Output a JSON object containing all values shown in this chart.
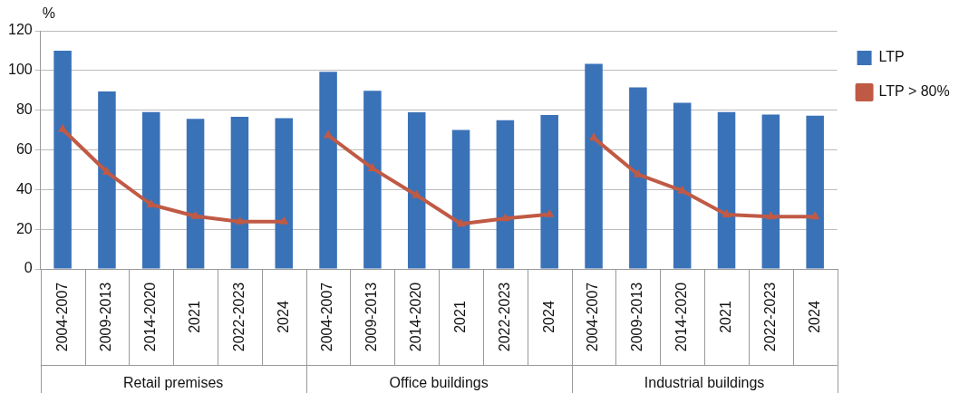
{
  "chart_data": {
    "type": "bar",
    "categories": [
      "2004-2007",
      "2009-2013",
      "2014-2020",
      "2021",
      "2022-2023",
      "2024",
      "2004-2007",
      "2009-2013",
      "2014-2020",
      "2021",
      "2022-2023",
      "2024",
      "2004-2007",
      "2009-2013",
      "2014-2020",
      "2021",
      "2022-2023",
      "2024"
    ],
    "series": [
      {
        "name": "LTP",
        "color": "#3a72b8",
        "values": [
          110,
          89.4,
          79,
          75.6,
          76.7,
          76,
          99.4,
          89.8,
          78.9,
          70,
          75,
          77.6,
          103.4,
          91.5,
          83.7,
          79,
          77.8,
          77.2
        ]
      },
      {
        "name": "LTP > 80%",
        "type": "line",
        "color": "#c05a45",
        "marker": "triangle",
        "values": [
          70.4,
          48.8,
          32.4,
          26.6,
          23.8,
          23.8,
          67.3,
          50.7,
          37.1,
          22.7,
          25.4,
          27.5,
          66,
          47.6,
          39.4,
          27.4,
          26.4,
          26.4
        ]
      }
    ],
    "ylabel": "%",
    "ylim": [
      0,
      120
    ],
    "yticks": [
      0,
      20,
      40,
      60,
      80,
      100,
      120
    ],
    "annotations": [
      "Retail premises",
      "Office buildings",
      "Industrial buildings"
    ],
    "grid": "y",
    "legend": "top right"
  }
}
